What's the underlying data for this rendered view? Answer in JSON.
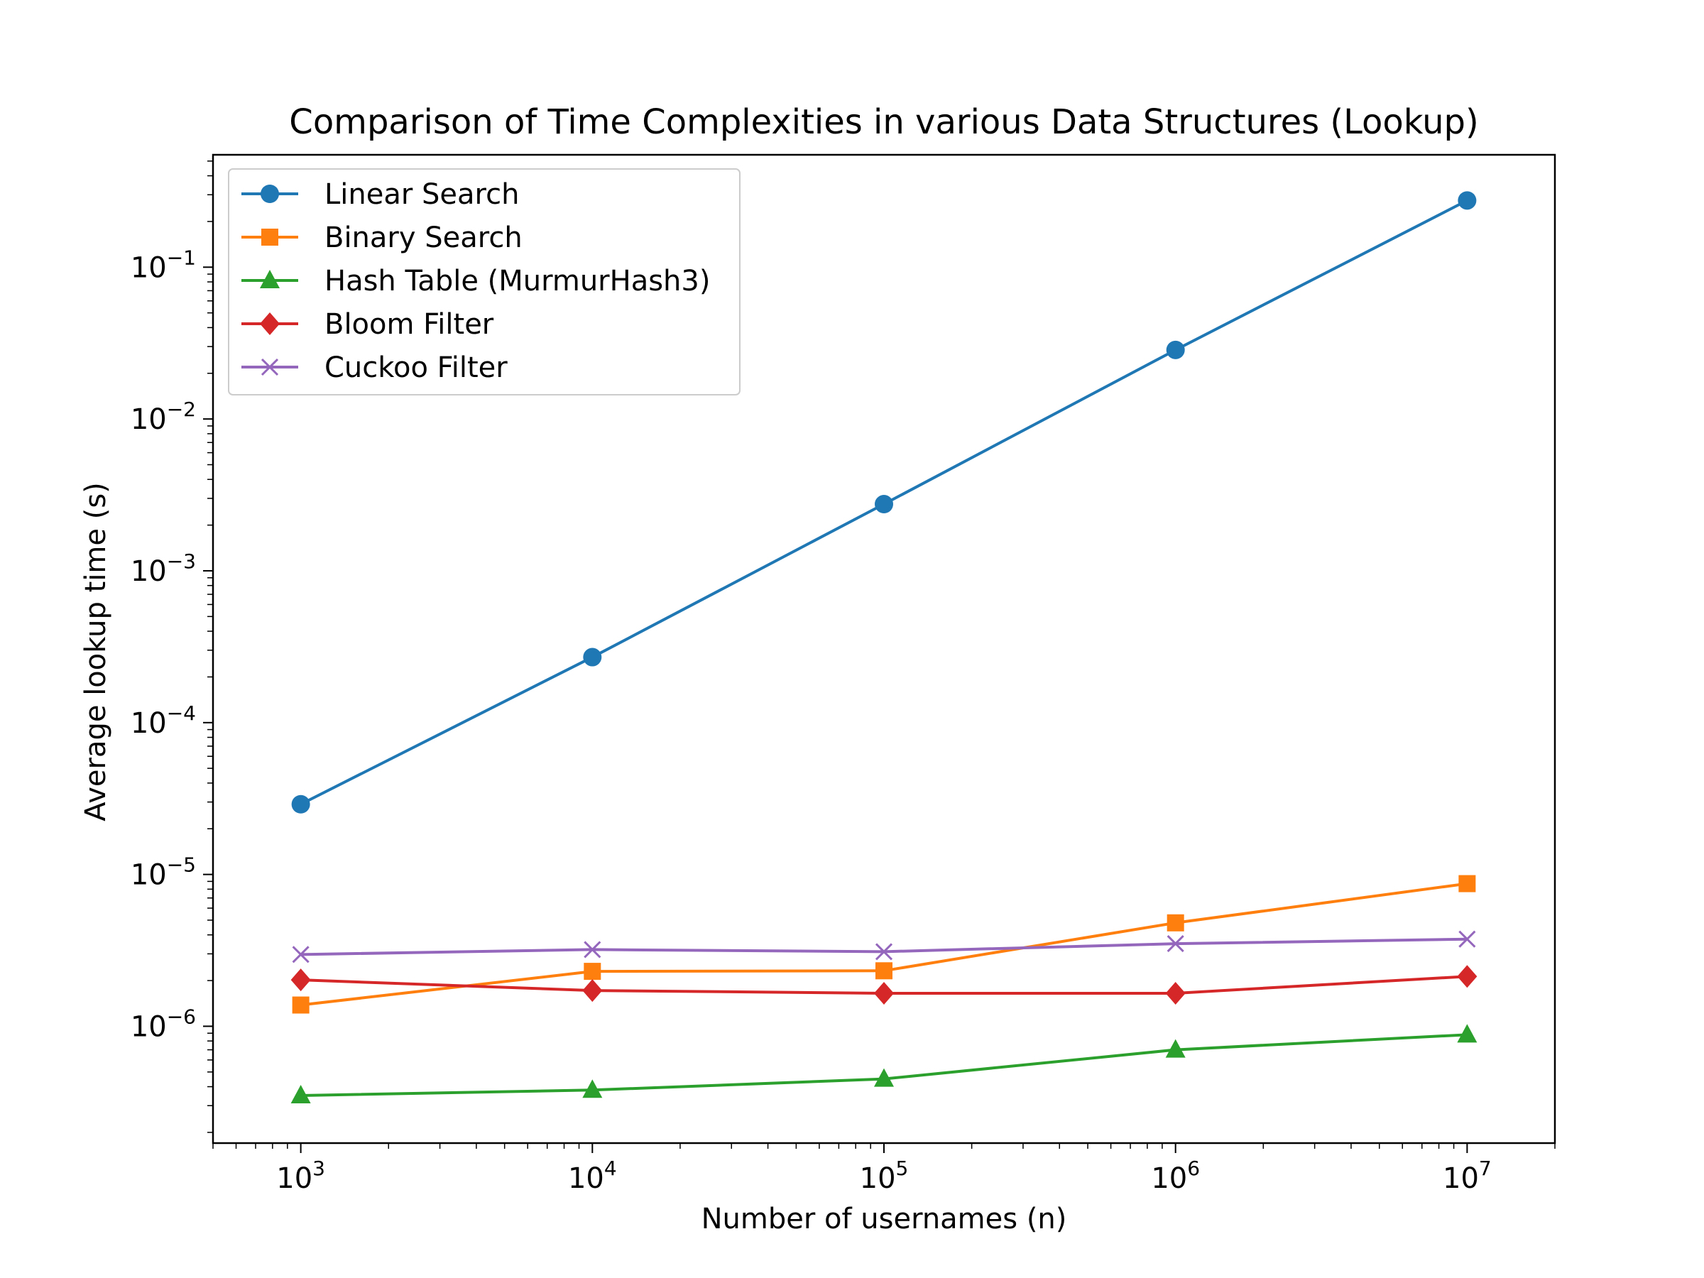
{
  "chart_data": {
    "type": "line",
    "title": "Comparison of Time Complexities in various Data Structures (Lookup)",
    "xlabel": "Number of usernames (n)",
    "ylabel": "Average lookup time (s)",
    "xscale": "log",
    "yscale": "log",
    "xlim": [
      500,
      20000000
    ],
    "ylim": [
      1.7e-07,
      0.55
    ],
    "x": [
      1000,
      10000,
      100000,
      1000000,
      10000000
    ],
    "xticks": [
      {
        "value": 1000,
        "base": "10",
        "exp": "3"
      },
      {
        "value": 10000,
        "base": "10",
        "exp": "4"
      },
      {
        "value": 100000,
        "base": "10",
        "exp": "5"
      },
      {
        "value": 1000000,
        "base": "10",
        "exp": "6"
      },
      {
        "value": 10000000,
        "base": "10",
        "exp": "7"
      }
    ],
    "yticks": [
      {
        "value": 1e-06,
        "base": "10",
        "exp": "−6"
      },
      {
        "value": 1e-05,
        "base": "10",
        "exp": "−5"
      },
      {
        "value": 0.0001,
        "base": "10",
        "exp": "−4"
      },
      {
        "value": 0.001,
        "base": "10",
        "exp": "−3"
      },
      {
        "value": 0.01,
        "base": "10",
        "exp": "−2"
      },
      {
        "value": 0.1,
        "base": "10",
        "exp": "−1"
      }
    ],
    "grid": false,
    "legend_position": "top-left",
    "series": [
      {
        "name": "Linear Search",
        "color": "#1f77b4",
        "marker": "circle",
        "values": [
          2.9e-05,
          0.00027,
          0.00275,
          0.0285,
          0.275
        ]
      },
      {
        "name": "Binary Search",
        "color": "#ff7f0e",
        "marker": "square",
        "values": [
          1.38e-06,
          2.3e-06,
          2.32e-06,
          4.8e-06,
          8.7e-06
        ]
      },
      {
        "name": "Hash Table (MurmurHash3)",
        "color": "#2ca02c",
        "marker": "triangle",
        "values": [
          3.5e-07,
          3.8e-07,
          4.5e-07,
          7e-07,
          8.8e-07
        ]
      },
      {
        "name": "Bloom Filter",
        "color": "#d62728",
        "marker": "diamond",
        "values": [
          2.02e-06,
          1.72e-06,
          1.65e-06,
          1.65e-06,
          2.13e-06
        ]
      },
      {
        "name": "Cuckoo Filter",
        "color": "#9467bd",
        "marker": "x",
        "values": [
          2.97e-06,
          3.2e-06,
          3.1e-06,
          3.5e-06,
          3.75e-06
        ]
      }
    ]
  }
}
